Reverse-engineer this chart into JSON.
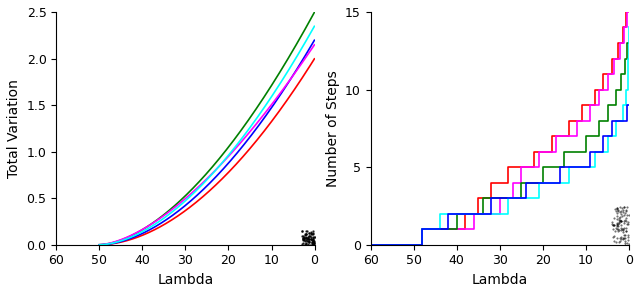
{
  "left_ylabel": "Total Variation",
  "right_ylabel": "Number of Steps",
  "xlabel": "Lambda",
  "xlim": [
    60,
    0
  ],
  "xticks": [
    60,
    50,
    40,
    30,
    20,
    10,
    0
  ],
  "left_ylim": [
    0,
    2.5
  ],
  "left_yticks": [
    0.0,
    0.5,
    1.0,
    1.5,
    2.0,
    2.5
  ],
  "right_ylim": [
    0,
    15
  ],
  "right_yticks": [
    0,
    5,
    10,
    15
  ],
  "bg_color": "#ffffff",
  "tv_scales": {
    "green": 2.5,
    "cyan": 2.35,
    "blue": 2.2,
    "red": 2.0,
    "magenta": 2.15
  },
  "tv_powers": {
    "green": 1.7,
    "cyan": 1.75,
    "blue": 1.8,
    "red": 1.85,
    "magenta": 1.6
  },
  "tv_order": [
    "red",
    "green",
    "blue",
    "magenta",
    "cyan"
  ],
  "step_configs": [
    {
      "color": "red",
      "steps": [
        48,
        38,
        35,
        32,
        28,
        22,
        18,
        14,
        11,
        8,
        6,
        4,
        2.5,
        1.5,
        0.8,
        0.3,
        0.1
      ]
    },
    {
      "color": "magenta",
      "steps": [
        48,
        36,
        30,
        27,
        25,
        21,
        17,
        12,
        9,
        7,
        5,
        3.5,
        2,
        1.2,
        0.5,
        0.2
      ]
    },
    {
      "color": "green",
      "steps": [
        48,
        40,
        34,
        25,
        20,
        15,
        10,
        7,
        5,
        3,
        1.8,
        1,
        0.4
      ]
    },
    {
      "color": "cyan",
      "steps": [
        48,
        44,
        28,
        21,
        14,
        8,
        5,
        3,
        1.5,
        0.8,
        0.3,
        0.15,
        0.05,
        0.02
      ]
    },
    {
      "color": "blue",
      "steps": [
        48,
        42,
        32,
        24,
        16,
        9,
        6,
        4,
        0.5
      ]
    }
  ]
}
